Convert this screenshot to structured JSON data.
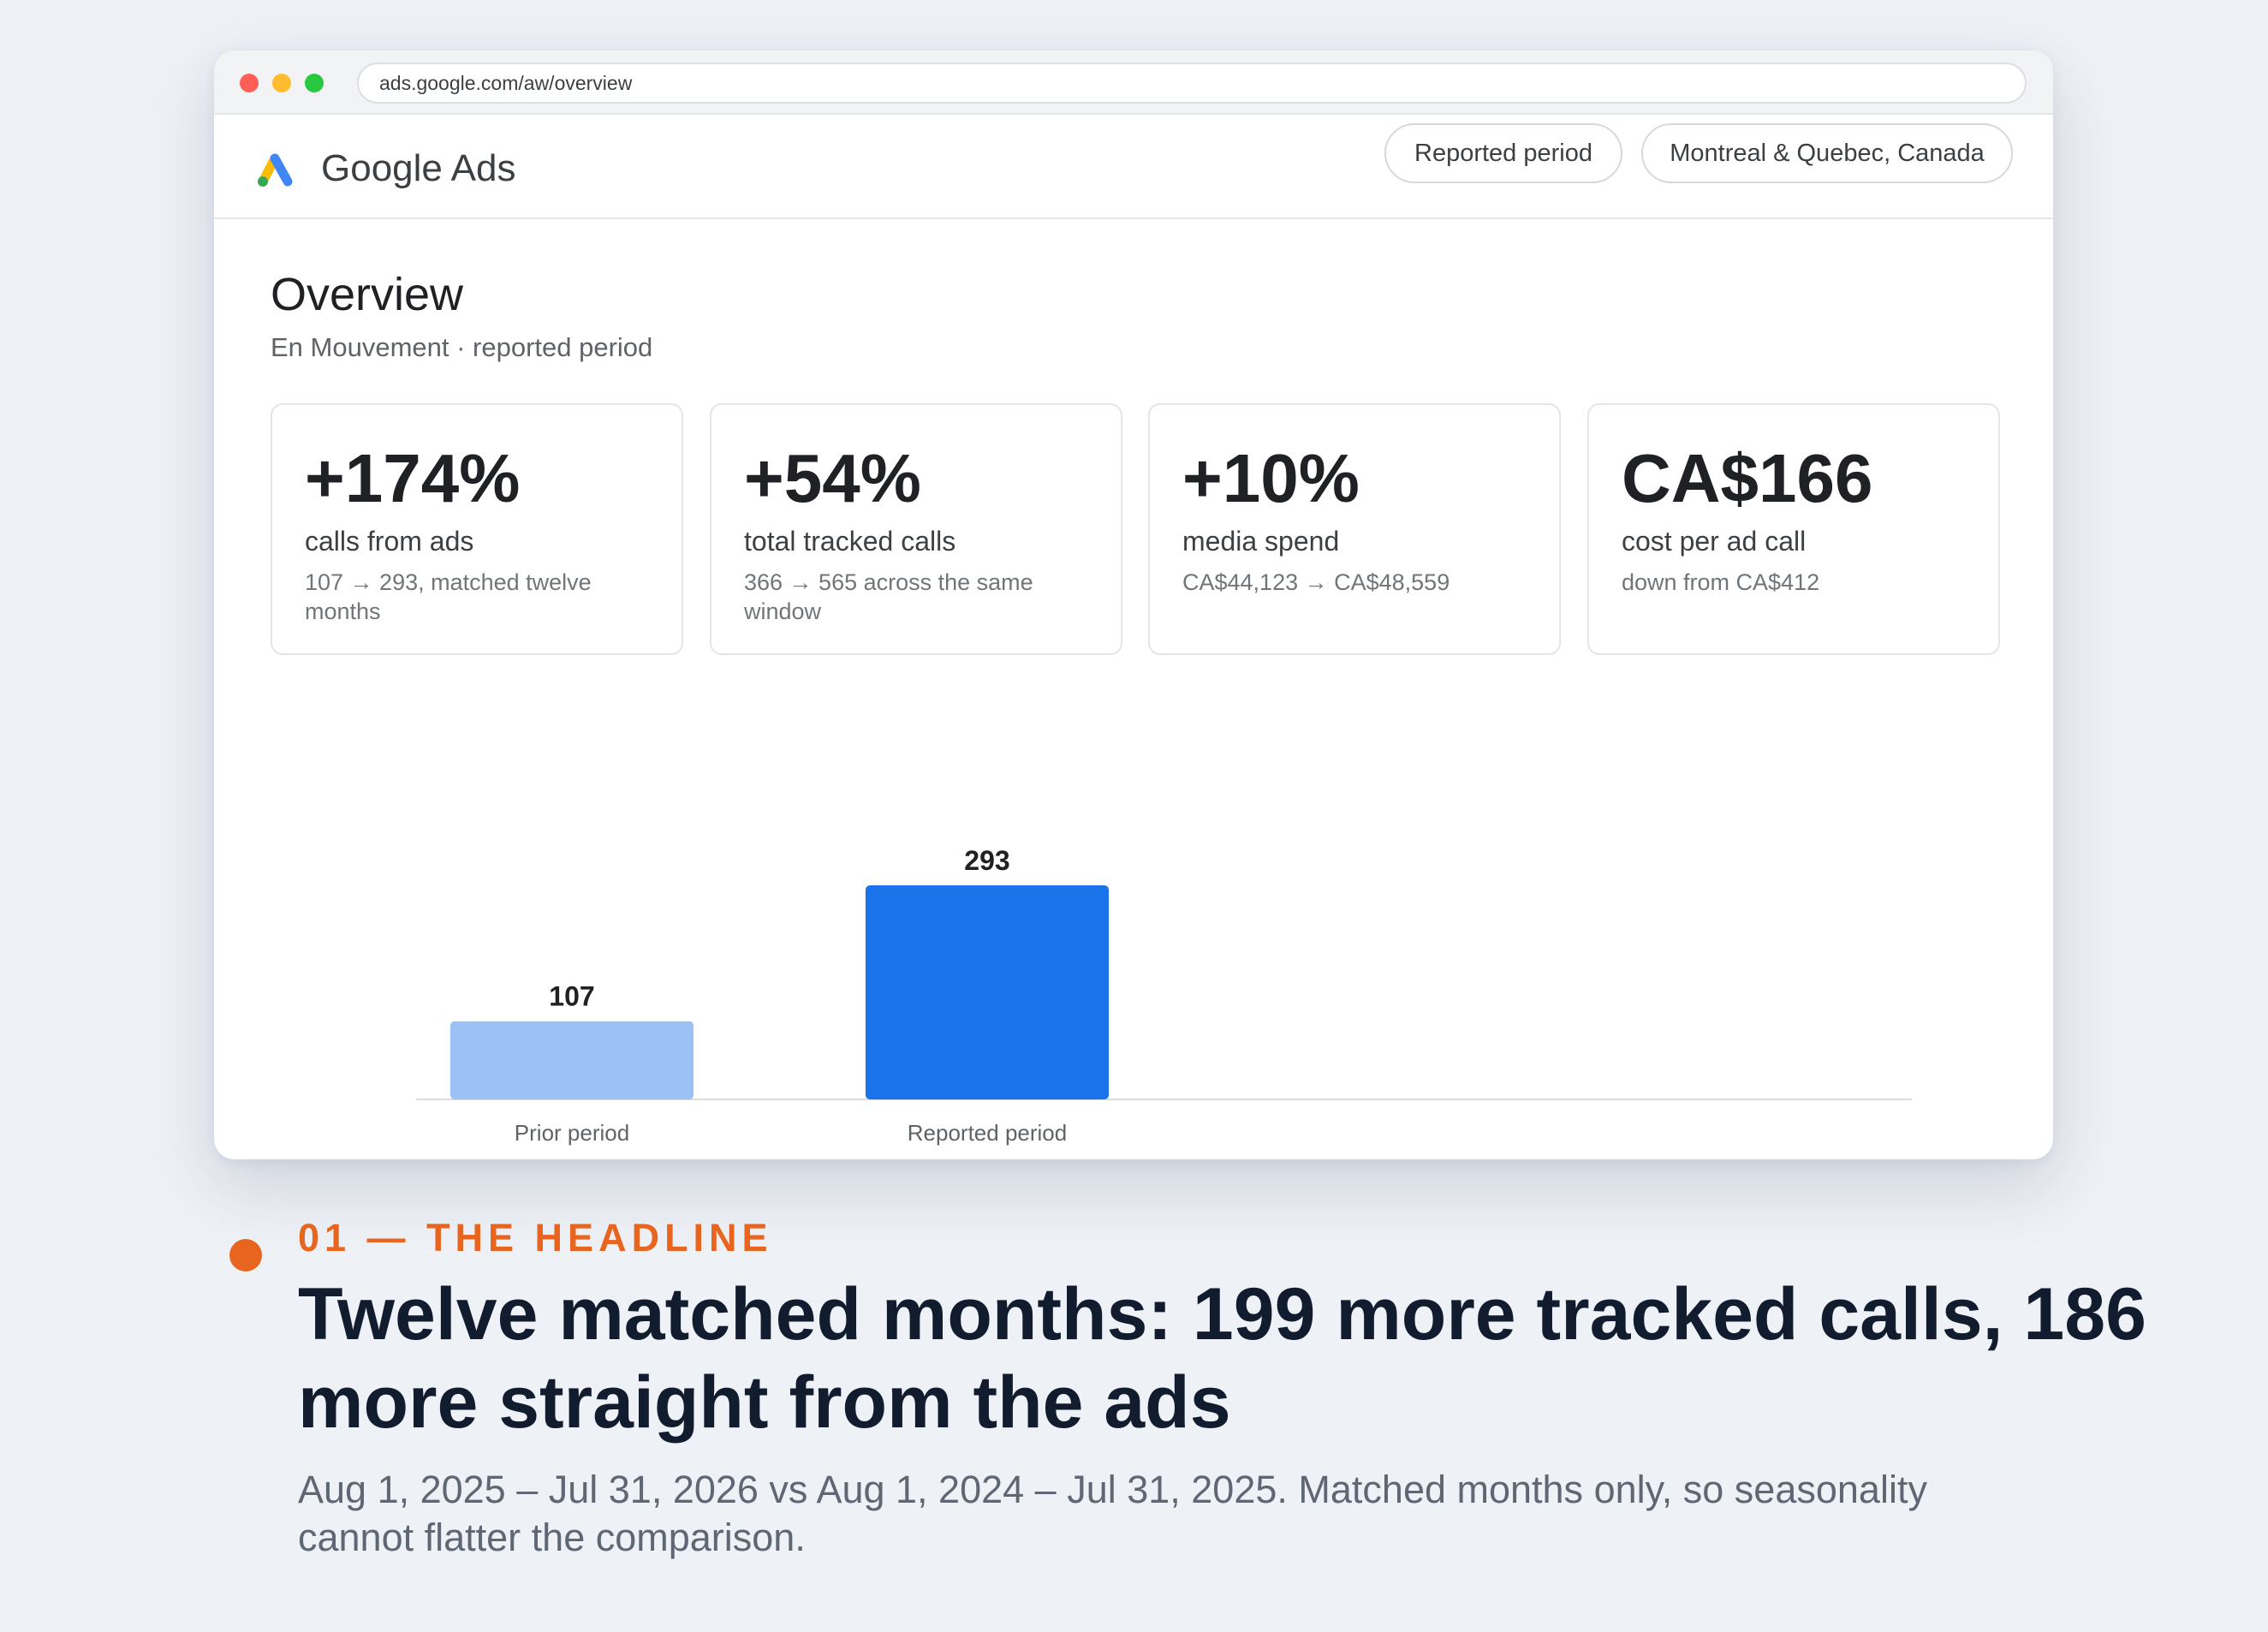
{
  "browser": {
    "url": "ads.google.com/aw/overview"
  },
  "app": {
    "title": "Google Ads",
    "filters": {
      "period": "Reported period",
      "region": "Montreal & Quebec, Canada"
    }
  },
  "overview": {
    "title": "Overview",
    "subtitle": "En Mouvement · reported period"
  },
  "cards": [
    {
      "value": "+174%",
      "label": "calls from ads",
      "detail": "107 → 293, matched twelve months"
    },
    {
      "value": "+54%",
      "label": "total tracked calls",
      "detail": "366 → 565 across the same window"
    },
    {
      "value": "+10%",
      "label": "media spend",
      "detail": "CA$44,123 → CA$48,559"
    },
    {
      "value": "CA$166",
      "label": "cost per ad call",
      "detail": "down from CA$412"
    }
  ],
  "chart_data": {
    "type": "bar",
    "categories": [
      "Prior period",
      "Reported period"
    ],
    "values": [
      107,
      293
    ],
    "colors": [
      "#9cc1f5",
      "#1a73e8"
    ],
    "title": "",
    "xlabel": "",
    "ylabel": "",
    "ylim": [
      0,
      293
    ],
    "grid": false
  },
  "caption": {
    "eyebrow": "01 — THE HEADLINE",
    "headline": "Twelve matched months: 199 more tracked calls, 186 more straight from the ads",
    "subtext": "Aug 1, 2025 – Jul 31, 2026 vs Aug 1, 2024 – Jul 31, 2025. Matched months only, so seasonality cannot flatter the comparison."
  },
  "colors": {
    "accent_orange": "#e8651f",
    "headline_navy": "#111c2e",
    "bar_prior": "#9cc1f5",
    "bar_reported": "#1a73e8"
  }
}
